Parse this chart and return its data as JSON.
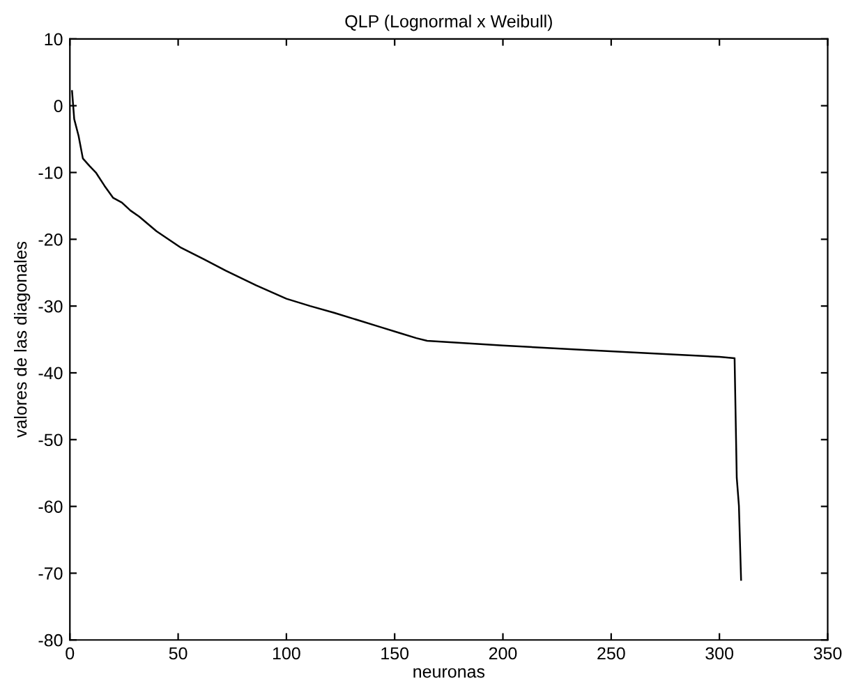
{
  "chart_data": {
    "type": "line",
    "title": "QLP (Lognormal x Weibull)",
    "xlabel": "neuronas",
    "ylabel": "valores de las diagonales",
    "xlim": [
      0,
      350
    ],
    "ylim": [
      -80,
      10
    ],
    "xticks": [
      0,
      50,
      100,
      150,
      200,
      250,
      300,
      350
    ],
    "yticks": [
      -80,
      -70,
      -60,
      -50,
      -40,
      -30,
      -20,
      -10,
      0,
      10
    ],
    "grid": false,
    "legend": false,
    "marker": "none",
    "line_style": "solid",
    "series": [
      {
        "color": "#000000",
        "x": [
          1,
          2,
          4,
          6,
          9,
          12,
          16,
          20,
          24,
          28,
          32,
          40,
          51,
          62,
          72,
          86,
          100,
          111,
          122,
          133,
          143,
          152,
          160,
          165,
          200,
          234,
          270,
          300,
          307,
          308,
          309,
          310
        ],
        "values": [
          2.2,
          -2.0,
          -4.5,
          -7.9,
          -9.0,
          -10.0,
          -12.0,
          -13.8,
          -14.5,
          -15.7,
          -16.6,
          -18.8,
          -21.2,
          -23.0,
          -24.7,
          -26.9,
          -28.9,
          -30.0,
          -31.0,
          -32.1,
          -33.1,
          -34.0,
          -34.8,
          -35.2,
          -35.9,
          -36.5,
          -37.1,
          -37.6,
          -37.8,
          -55.7,
          -59.9,
          -71.0
        ]
      }
    ]
  }
}
